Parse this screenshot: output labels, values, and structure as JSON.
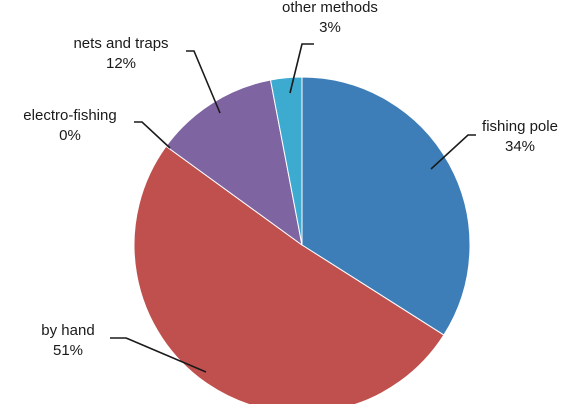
{
  "chart_data": {
    "type": "pie",
    "slices": [
      {
        "label": "fishing pole",
        "value": 34,
        "value_label": "34%",
        "color": "#3d7eb9"
      },
      {
        "label": "by hand",
        "value": 51,
        "value_label": "51%",
        "color": "#c0504d"
      },
      {
        "label": "electro-fishing",
        "value": 0,
        "value_label": "0%",
        "color": "#9bbb59"
      },
      {
        "label": "nets and traps",
        "value": 12,
        "value_label": "12%",
        "color": "#7f64a2"
      },
      {
        "label": "other methods",
        "value": 3,
        "value_label": "3%",
        "color": "#3daad0"
      }
    ],
    "start": "12 o'clock",
    "direction": "clockwise",
    "title": "",
    "legend": "none"
  }
}
